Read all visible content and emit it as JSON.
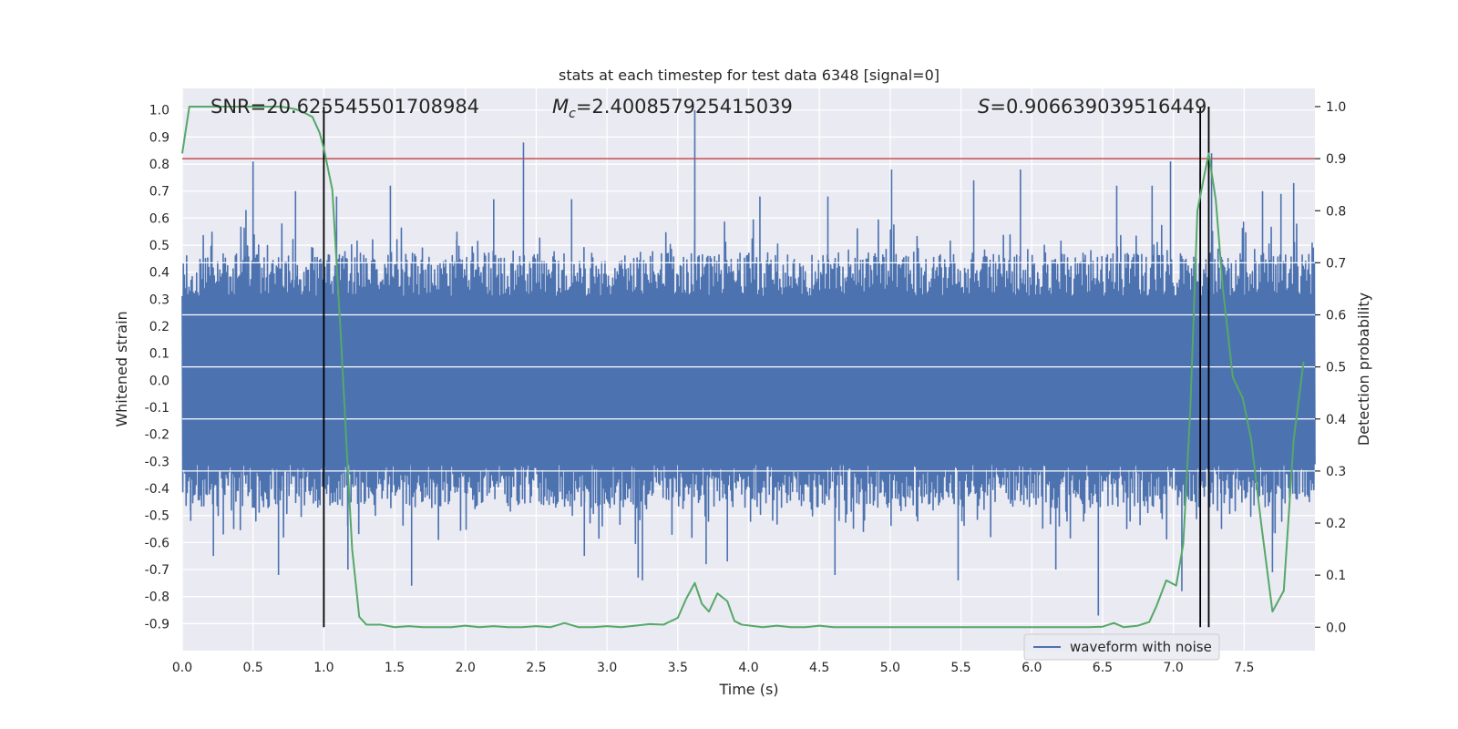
{
  "chart_data": {
    "type": "line",
    "title": "stats at each timestep for test data 6348 [signal=0]",
    "xlabel": "Time (s)",
    "ylabel": "Whitened strain",
    "y2label": "Detection probability",
    "xlim": [
      0,
      8
    ],
    "ylim": [
      -1.0,
      1.08
    ],
    "y2lim": [
      -0.045,
      1.035
    ],
    "xticks": [
      "0.0",
      "0.5",
      "1.0",
      "1.5",
      "2.0",
      "2.5",
      "3.0",
      "3.5",
      "4.0",
      "4.5",
      "5.0",
      "5.5",
      "6.0",
      "6.5",
      "7.0",
      "7.5"
    ],
    "yticks": [
      "1.0",
      "0.9",
      "0.8",
      "0.7",
      "0.6",
      "0.5",
      "0.4",
      "0.3",
      "0.2",
      "0.1",
      "0.0",
      "-0.1",
      "-0.2",
      "-0.3",
      "-0.4",
      "-0.5",
      "-0.6",
      "-0.7",
      "-0.8",
      "-0.9"
    ],
    "y2ticks": [
      "1.0",
      "0.9",
      "0.8",
      "0.7",
      "0.6",
      "0.5",
      "0.4",
      "0.3",
      "0.2",
      "0.1",
      "0.0"
    ],
    "legend": {
      "label": "waveform with noise",
      "location": "lower right"
    },
    "annotations": {
      "snr": "SNR=20.625545501708984",
      "mc_symbol": "M",
      "mc_sub": "c",
      "mc_value": "=2.400857925415039",
      "s_symbol": "S",
      "s_value": "=0.906639039516449"
    },
    "threshold": 0.9,
    "event_lines_x": [
      1.0,
      7.19,
      7.25
    ],
    "waveform": {
      "name": "waveform with noise",
      "samples": 2048,
      "core_amplitude": 0.31,
      "band_amplitude": 0.45,
      "spikes": [
        {
          "x": 0.06,
          "y": -0.52
        },
        {
          "x": 0.21,
          "y": 0.55
        },
        {
          "x": 0.22,
          "y": -0.65
        },
        {
          "x": 0.29,
          "y": -0.57
        },
        {
          "x": 0.45,
          "y": 0.63
        },
        {
          "x": 0.5,
          "y": 0.81
        },
        {
          "x": 0.68,
          "y": -0.72
        },
        {
          "x": 0.8,
          "y": 0.7
        },
        {
          "x": 1.09,
          "y": 0.68
        },
        {
          "x": 1.17,
          "y": -0.7
        },
        {
          "x": 1.47,
          "y": 0.72
        },
        {
          "x": 1.62,
          "y": -0.76
        },
        {
          "x": 1.94,
          "y": 0.55
        },
        {
          "x": 2.2,
          "y": 0.67
        },
        {
          "x": 2.41,
          "y": 0.88
        },
        {
          "x": 2.75,
          "y": 0.67
        },
        {
          "x": 2.84,
          "y": -0.65
        },
        {
          "x": 3.22,
          "y": -0.73
        },
        {
          "x": 3.25,
          "y": -0.74
        },
        {
          "x": 3.62,
          "y": 1.0
        },
        {
          "x": 3.7,
          "y": -0.68
        },
        {
          "x": 3.85,
          "y": -0.67
        },
        {
          "x": 4.08,
          "y": 0.68
        },
        {
          "x": 4.56,
          "y": 0.68
        },
        {
          "x": 4.61,
          "y": -0.72
        },
        {
          "x": 5.01,
          "y": 0.78
        },
        {
          "x": 5.48,
          "y": -0.74
        },
        {
          "x": 5.59,
          "y": 0.74
        },
        {
          "x": 5.92,
          "y": 0.78
        },
        {
          "x": 6.17,
          "y": -0.7
        },
        {
          "x": 6.47,
          "y": -0.87
        },
        {
          "x": 6.6,
          "y": 0.72
        },
        {
          "x": 6.85,
          "y": 0.72
        },
        {
          "x": 6.98,
          "y": 0.81
        },
        {
          "x": 7.06,
          "y": -0.78
        },
        {
          "x": 7.19,
          "y": 0.78
        },
        {
          "x": 7.27,
          "y": 0.84
        },
        {
          "x": 7.34,
          "y": -0.55
        },
        {
          "x": 7.63,
          "y": 0.7
        },
        {
          "x": 7.7,
          "y": -0.71
        },
        {
          "x": 7.76,
          "y": 0.69
        },
        {
          "x": 7.85,
          "y": 0.73
        }
      ]
    },
    "detection_probability": {
      "x": [
        0.0,
        0.05,
        0.1,
        0.2,
        0.3,
        0.5,
        0.7,
        0.8,
        0.85,
        0.92,
        0.97,
        1.0,
        1.06,
        1.12,
        1.17,
        1.2,
        1.25,
        1.3,
        1.4,
        1.5,
        1.6,
        1.7,
        1.8,
        1.9,
        2.0,
        2.1,
        2.2,
        2.3,
        2.4,
        2.5,
        2.6,
        2.7,
        2.8,
        2.9,
        3.0,
        3.1,
        3.2,
        3.3,
        3.4,
        3.5,
        3.56,
        3.62,
        3.67,
        3.72,
        3.78,
        3.85,
        3.9,
        3.95,
        4.1,
        4.2,
        4.3,
        4.4,
        4.5,
        4.6,
        4.7,
        4.8,
        5.0,
        5.2,
        5.4,
        5.6,
        5.8,
        6.0,
        6.2,
        6.4,
        6.5,
        6.58,
        6.65,
        6.75,
        6.83,
        6.88,
        6.95,
        7.02,
        7.07,
        7.12,
        7.17,
        7.22,
        7.25,
        7.3,
        7.35,
        7.42,
        7.49,
        7.55,
        7.62,
        7.7,
        7.78,
        7.85,
        7.92
      ],
      "y": [
        0.91,
        1.0,
        1.0,
        1.0,
        1.0,
        1.0,
        1.0,
        0.995,
        0.99,
        0.98,
        0.95,
        0.92,
        0.84,
        0.56,
        0.3,
        0.15,
        0.02,
        0.005,
        0.005,
        0.0,
        0.002,
        0.0,
        0.0,
        0.0,
        0.003,
        0.0,
        0.002,
        0.0,
        0.0,
        0.002,
        0.0,
        0.008,
        0.0,
        0.0,
        0.002,
        0.0,
        0.003,
        0.006,
        0.005,
        0.018,
        0.055,
        0.085,
        0.045,
        0.03,
        0.065,
        0.05,
        0.012,
        0.005,
        0.0,
        0.003,
        0.0,
        0.0,
        0.003,
        0.0,
        0.0,
        0.0,
        0.0,
        0.0,
        0.0,
        0.0,
        0.0,
        0.0,
        0.0,
        0.0,
        0.001,
        0.008,
        0.0,
        0.003,
        0.01,
        0.04,
        0.09,
        0.08,
        0.16,
        0.42,
        0.8,
        0.87,
        0.91,
        0.82,
        0.65,
        0.48,
        0.44,
        0.36,
        0.2,
        0.03,
        0.07,
        0.36,
        0.51
      ]
    },
    "colors": {
      "background": "#eaeaf2",
      "grid": "#ffffff",
      "waveform": "#4c72b0",
      "probability": "#55a868",
      "threshold": "#c44e52",
      "event_line": "#000000",
      "text": "#262626"
    }
  }
}
